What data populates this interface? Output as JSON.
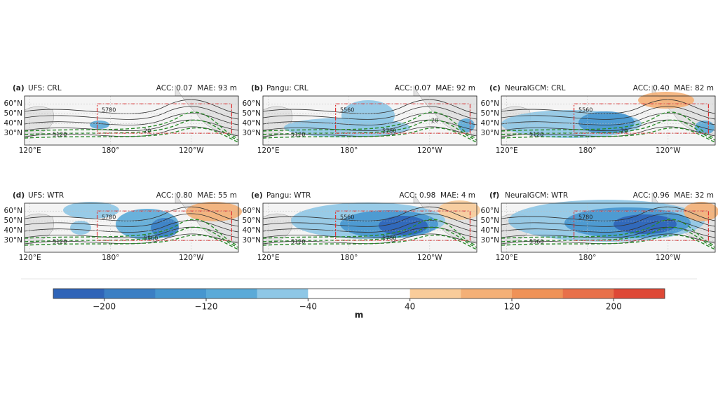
{
  "panels": [
    {
      "label": "(a)",
      "title": "UFS: CRL",
      "metrics": "ACC: 0.07  MAE: 93 m",
      "contour_labels": [
        "5120",
        "5780",
        "20"
      ]
    },
    {
      "label": "(b)",
      "title": "Pangu: CRL",
      "metrics": "ACC: 0.07  MAE: 92 m",
      "contour_labels": [
        "5120",
        "5560",
        "5780",
        "20"
      ]
    },
    {
      "label": "(c)",
      "title": "NeuralGCM: CRL",
      "metrics": "ACC: 0.40  MAE: 82 m",
      "contour_labels": [
        "5120",
        "5560",
        "20"
      ]
    },
    {
      "label": "(d)",
      "title": "UFS: WTR",
      "metrics": "ACC: 0.80  MAE: 55 m",
      "contour_labels": [
        "5120",
        "5780",
        "5560"
      ]
    },
    {
      "label": "(e)",
      "title": "Pangu: WTR",
      "metrics": "ACC: 0.98  MAE: 4 m",
      "contour_labels": [
        "5120",
        "5560",
        "5780"
      ]
    },
    {
      "label": "(f)",
      "title": "NeuralGCM: WTR",
      "metrics": "ACC: 0.96  MAE: 32 m",
      "contour_labels": [
        "5560",
        "5780"
      ]
    }
  ],
  "latlim": [
    18,
    68
  ],
  "lonlim": [
    116,
    275
  ],
  "lat_ticks": [
    {
      "value": 60,
      "label": "60°N"
    },
    {
      "value": 50,
      "label": "50°N"
    },
    {
      "value": 40,
      "label": "40°N"
    },
    {
      "value": 30,
      "label": "30°N"
    }
  ],
  "lon_ticks": [
    {
      "value": 120,
      "label": "120°E"
    },
    {
      "value": 180,
      "label": "180°"
    },
    {
      "value": 240,
      "label": "120°W"
    }
  ],
  "colorbar": {
    "lim": [
      -240,
      240
    ],
    "colors": [
      "#2f64b8",
      "#3b7fc4",
      "#4696cf",
      "#5aaad8",
      "#8ec7e6",
      "#ffffff",
      "#ffffff",
      "#f9cc9a",
      "#f4b077",
      "#ef9257",
      "#e8704a",
      "#de4836"
    ],
    "ticks": [
      {
        "value": -200,
        "label": "−200"
      },
      {
        "value": -120,
        "label": "−120"
      },
      {
        "value": -40,
        "label": "−40"
      },
      40,
      120,
      200
    ],
    "unit": "m"
  }
}
